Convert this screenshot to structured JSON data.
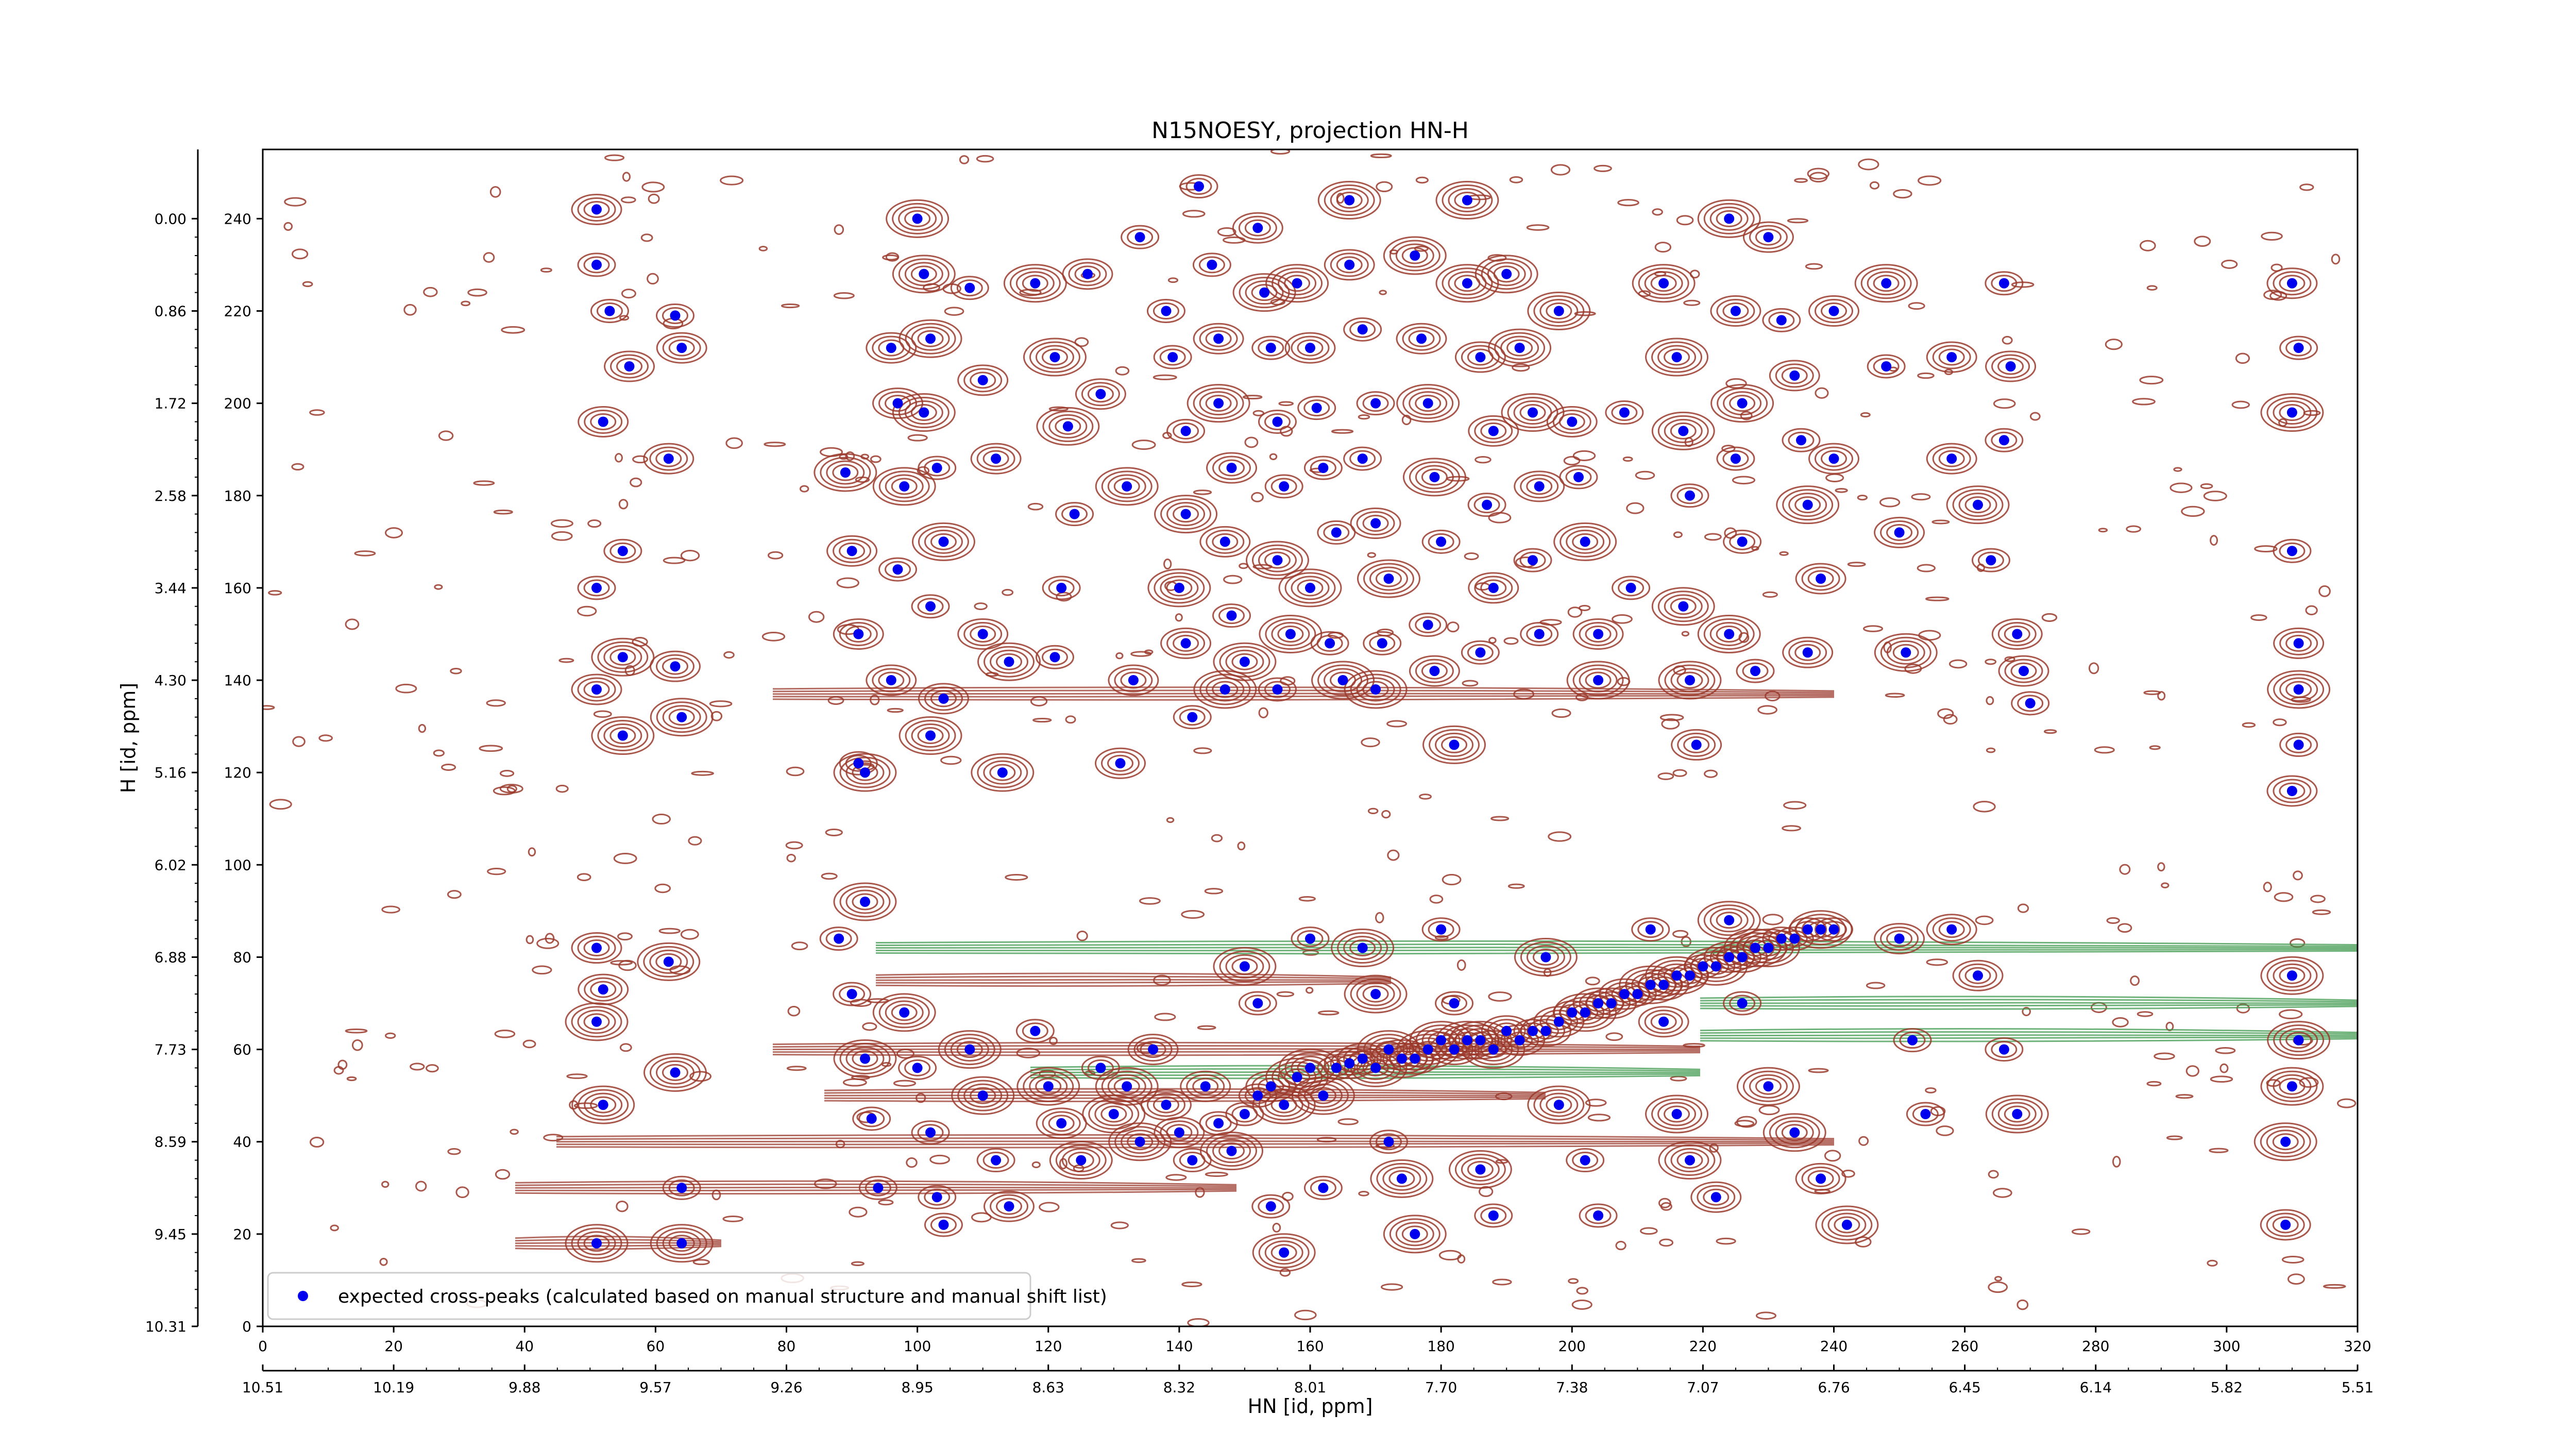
{
  "chart_data": {
    "type": "scatter",
    "title": "N15NOESY, projection HN-H",
    "xlabel": "HN [id, ppm]",
    "ylabel": "H [id, ppm]",
    "x_index_ticks": [
      "0",
      "20",
      "40",
      "60",
      "80",
      "100",
      "120",
      "140",
      "160",
      "180",
      "200",
      "220",
      "240",
      "260",
      "280",
      "300",
      "320"
    ],
    "x_ppm_ticks": [
      "10.51",
      "10.19",
      "9.88",
      "9.57",
      "9.26",
      "8.95",
      "8.63",
      "8.32",
      "8.01",
      "7.70",
      "7.38",
      "7.07",
      "6.76",
      "6.45",
      "6.14",
      "5.82",
      "5.51"
    ],
    "y_index_ticks": [
      "0",
      "20",
      "40",
      "60",
      "80",
      "100",
      "120",
      "140",
      "160",
      "180",
      "200",
      "220",
      "240"
    ],
    "y_ppm_ticks": [
      "10.31",
      "9.45",
      "8.59",
      "7.73",
      "6.88",
      "6.02",
      "5.16",
      "4.30",
      "3.44",
      "2.58",
      "1.72",
      "0.86",
      "0.00"
    ],
    "xlim": [
      0,
      320
    ],
    "ylim": [
      0,
      255
    ],
    "grid": false,
    "legend_position": "lower-left",
    "legend": [
      "expected cross-peaks (calculated based on manual structure and manual shift list)"
    ],
    "colors": {
      "marker": "#0000ee",
      "contour_positive": "#9b3a2c",
      "contour_negative": "#3f9a4f",
      "axis": "#000000"
    },
    "series": [
      {
        "name": "expected cross-peaks (calculated based on manual structure and manual shift list)",
        "marker": "filled circle",
        "points": [
          [
            51,
            242
          ],
          [
            51,
            230
          ],
          [
            53,
            220
          ],
          [
            56,
            208
          ],
          [
            52,
            196
          ],
          [
            55,
            168
          ],
          [
            51,
            160
          ],
          [
            55,
            145
          ],
          [
            51,
            138
          ],
          [
            55,
            128
          ],
          [
            63,
            219
          ],
          [
            64,
            212
          ],
          [
            62,
            188
          ],
          [
            63,
            143
          ],
          [
            64,
            132
          ],
          [
            89,
            185
          ],
          [
            90,
            168
          ],
          [
            91,
            150
          ],
          [
            91,
            122
          ],
          [
            96,
            212
          ],
          [
            97,
            200
          ],
          [
            98,
            182
          ],
          [
            97,
            164
          ],
          [
            96,
            140
          ],
          [
            92,
            120
          ],
          [
            92,
            92
          ],
          [
            100,
            240
          ],
          [
            101,
            228
          ],
          [
            102,
            214
          ],
          [
            101,
            198
          ],
          [
            103,
            186
          ],
          [
            104,
            170
          ],
          [
            102,
            156
          ],
          [
            104,
            136
          ],
          [
            102,
            128
          ],
          [
            108,
            225
          ],
          [
            110,
            205
          ],
          [
            112,
            188
          ],
          [
            110,
            150
          ],
          [
            114,
            144
          ],
          [
            113,
            120
          ],
          [
            118,
            226
          ],
          [
            121,
            210
          ],
          [
            123,
            195
          ],
          [
            124,
            176
          ],
          [
            122,
            160
          ],
          [
            121,
            145
          ],
          [
            126,
            228
          ],
          [
            128,
            202
          ],
          [
            132,
            182
          ],
          [
            133,
            140
          ],
          [
            131,
            122
          ],
          [
            134,
            236
          ],
          [
            138,
            220
          ],
          [
            139,
            210
          ],
          [
            141,
            194
          ],
          [
            141,
            176
          ],
          [
            140,
            160
          ],
          [
            141,
            148
          ],
          [
            142,
            132
          ],
          [
            143,
            247
          ],
          [
            145,
            230
          ],
          [
            146,
            214
          ],
          [
            146,
            200
          ],
          [
            148,
            186
          ],
          [
            147,
            170
          ],
          [
            148,
            154
          ],
          [
            150,
            144
          ],
          [
            147,
            138
          ],
          [
            152,
            238
          ],
          [
            153,
            224
          ],
          [
            154,
            212
          ],
          [
            155,
            196
          ],
          [
            156,
            182
          ],
          [
            155,
            166
          ],
          [
            157,
            150
          ],
          [
            155,
            138
          ],
          [
            158,
            226
          ],
          [
            160,
            212
          ],
          [
            161,
            199
          ],
          [
            162,
            186
          ],
          [
            164,
            172
          ],
          [
            160,
            160
          ],
          [
            163,
            148
          ],
          [
            165,
            140
          ],
          [
            166,
            244
          ],
          [
            166,
            230
          ],
          [
            168,
            216
          ],
          [
            170,
            200
          ],
          [
            168,
            188
          ],
          [
            170,
            174
          ],
          [
            172,
            162
          ],
          [
            171,
            148
          ],
          [
            170,
            138
          ],
          [
            176,
            232
          ],
          [
            177,
            214
          ],
          [
            178,
            200
          ],
          [
            179,
            184
          ],
          [
            180,
            170
          ],
          [
            178,
            152
          ],
          [
            179,
            142
          ],
          [
            182,
            126
          ],
          [
            184,
            244
          ],
          [
            184,
            226
          ],
          [
            186,
            210
          ],
          [
            188,
            194
          ],
          [
            187,
            178
          ],
          [
            188,
            160
          ],
          [
            186,
            146
          ],
          [
            190,
            228
          ],
          [
            192,
            212
          ],
          [
            194,
            198
          ],
          [
            195,
            182
          ],
          [
            194,
            166
          ],
          [
            195,
            150
          ],
          [
            198,
            220
          ],
          [
            200,
            196
          ],
          [
            201,
            184
          ],
          [
            202,
            170
          ],
          [
            204,
            150
          ],
          [
            204,
            140
          ],
          [
            208,
            198
          ],
          [
            209,
            160
          ],
          [
            214,
            226
          ],
          [
            216,
            210
          ],
          [
            217,
            194
          ],
          [
            218,
            180
          ],
          [
            217,
            156
          ],
          [
            218,
            140
          ],
          [
            219,
            126
          ],
          [
            224,
            240
          ],
          [
            225,
            220
          ],
          [
            226,
            200
          ],
          [
            225,
            188
          ],
          [
            226,
            170
          ],
          [
            224,
            150
          ],
          [
            228,
            142
          ],
          [
            230,
            236
          ],
          [
            232,
            218
          ],
          [
            234,
            206
          ],
          [
            235,
            192
          ],
          [
            236,
            178
          ],
          [
            238,
            162
          ],
          [
            236,
            146
          ],
          [
            240,
            220
          ],
          [
            240,
            188
          ],
          [
            248,
            226
          ],
          [
            248,
            208
          ],
          [
            250,
            172
          ],
          [
            251,
            146
          ],
          [
            258,
            210
          ],
          [
            258,
            188
          ],
          [
            262,
            178
          ],
          [
            264,
            166
          ],
          [
            266,
            226
          ],
          [
            267,
            208
          ],
          [
            266,
            192
          ],
          [
            268,
            150
          ],
          [
            269,
            142
          ],
          [
            270,
            135
          ],
          [
            310,
            226
          ],
          [
            311,
            212
          ],
          [
            310,
            198
          ],
          [
            310,
            168
          ],
          [
            311,
            148
          ],
          [
            311,
            138
          ],
          [
            311,
            126
          ],
          [
            310,
            116
          ],
          [
            51,
            82
          ],
          [
            52,
            73
          ],
          [
            51,
            66
          ],
          [
            52,
            48
          ],
          [
            51,
            18
          ],
          [
            62,
            79
          ],
          [
            63,
            55
          ],
          [
            64,
            30
          ],
          [
            64,
            18
          ],
          [
            88,
            84
          ],
          [
            90,
            72
          ],
          [
            92,
            58
          ],
          [
            93,
            45
          ],
          [
            94,
            30
          ],
          [
            98,
            68
          ],
          [
            100,
            56
          ],
          [
            102,
            42
          ],
          [
            103,
            28
          ],
          [
            104,
            22
          ],
          [
            108,
            60
          ],
          [
            110,
            50
          ],
          [
            112,
            36
          ],
          [
            114,
            26
          ],
          [
            118,
            64
          ],
          [
            120,
            52
          ],
          [
            122,
            44
          ],
          [
            125,
            36
          ],
          [
            128,
            56
          ],
          [
            130,
            46
          ],
          [
            132,
            52
          ],
          [
            134,
            40
          ],
          [
            136,
            60
          ],
          [
            138,
            48
          ],
          [
            140,
            42
          ],
          [
            142,
            36
          ],
          [
            144,
            52
          ],
          [
            146,
            44
          ],
          [
            148,
            38
          ],
          [
            150,
            46
          ],
          [
            152,
            50
          ],
          [
            154,
            52
          ],
          [
            156,
            48
          ],
          [
            158,
            54
          ],
          [
            160,
            56
          ],
          [
            162,
            50
          ],
          [
            164,
            56
          ],
          [
            166,
            57
          ],
          [
            168,
            58
          ],
          [
            170,
            56
          ],
          [
            172,
            60
          ],
          [
            174,
            58
          ],
          [
            176,
            58
          ],
          [
            178,
            60
          ],
          [
            180,
            62
          ],
          [
            182,
            60
          ],
          [
            184,
            62
          ],
          [
            186,
            62
          ],
          [
            188,
            60
          ],
          [
            190,
            64
          ],
          [
            192,
            62
          ],
          [
            194,
            64
          ],
          [
            196,
            64
          ],
          [
            198,
            66
          ],
          [
            200,
            68
          ],
          [
            202,
            68
          ],
          [
            204,
            70
          ],
          [
            206,
            70
          ],
          [
            208,
            72
          ],
          [
            210,
            72
          ],
          [
            212,
            74
          ],
          [
            214,
            74
          ],
          [
            216,
            76
          ],
          [
            218,
            76
          ],
          [
            220,
            78
          ],
          [
            222,
            78
          ],
          [
            224,
            80
          ],
          [
            226,
            80
          ],
          [
            228,
            82
          ],
          [
            230,
            82
          ],
          [
            232,
            84
          ],
          [
            234,
            84
          ],
          [
            236,
            86
          ],
          [
            238,
            86
          ],
          [
            240,
            86
          ],
          [
            150,
            78
          ],
          [
            152,
            70
          ],
          [
            154,
            26
          ],
          [
            156,
            16
          ],
          [
            160,
            84
          ],
          [
            162,
            30
          ],
          [
            168,
            82
          ],
          [
            170,
            72
          ],
          [
            172,
            40
          ],
          [
            174,
            32
          ],
          [
            176,
            20
          ],
          [
            180,
            86
          ],
          [
            182,
            70
          ],
          [
            186,
            34
          ],
          [
            188,
            24
          ],
          [
            196,
            80
          ],
          [
            198,
            48
          ],
          [
            202,
            36
          ],
          [
            204,
            24
          ],
          [
            212,
            86
          ],
          [
            214,
            66
          ],
          [
            216,
            46
          ],
          [
            218,
            36
          ],
          [
            222,
            28
          ],
          [
            224,
            88
          ],
          [
            226,
            70
          ],
          [
            230,
            52
          ],
          [
            234,
            42
          ],
          [
            238,
            32
          ],
          [
            242,
            22
          ],
          [
            250,
            84
          ],
          [
            252,
            62
          ],
          [
            254,
            46
          ],
          [
            258,
            86
          ],
          [
            262,
            76
          ],
          [
            266,
            60
          ],
          [
            268,
            46
          ],
          [
            310,
            76
          ],
          [
            311,
            62
          ],
          [
            310,
            52
          ],
          [
            309,
            40
          ],
          [
            309,
            22
          ]
        ]
      }
    ]
  }
}
